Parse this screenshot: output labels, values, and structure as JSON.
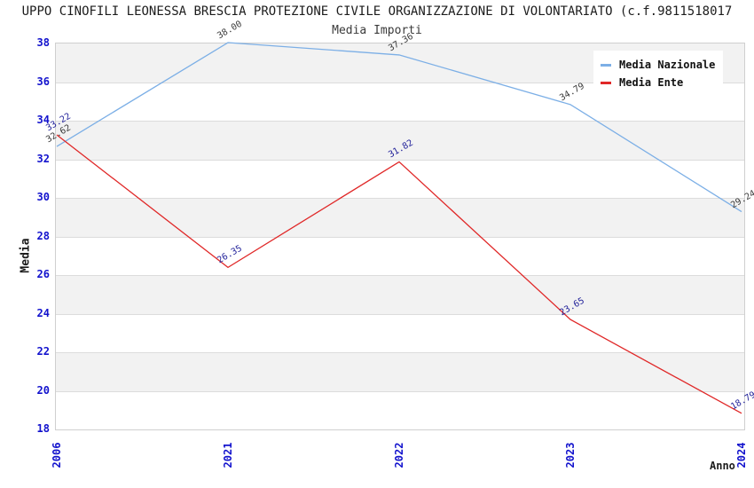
{
  "chart_data": {
    "type": "line",
    "title": "UPPO CINOFILI LEONESSA BRESCIA PROTEZIONE CIVILE ORGANIZZAZIONE DI VOLONTARIATO (c.f.9811518017",
    "subtitle": "Media Importi",
    "xlabel": "Anno",
    "ylabel": "Media",
    "categories": [
      "2006",
      "2021",
      "2022",
      "2023",
      "2024"
    ],
    "series": [
      {
        "name": "Media Nazionale",
        "color": "#7cafe6",
        "label_color": "#3a3a3a",
        "values": [
          32.62,
          38.0,
          37.36,
          34.79,
          29.24
        ]
      },
      {
        "name": "Media Ente",
        "color": "#e02828",
        "label_color": "#1f1f99",
        "values": [
          33.22,
          26.35,
          31.82,
          23.65,
          18.79
        ]
      }
    ],
    "ylim": [
      18,
      38
    ],
    "ytick_step": 2,
    "value_label_decimals": 2,
    "grid": "horizontal-alternating-bands",
    "band_color": "#f2f2f2",
    "tick_label_color": "#1212cd",
    "legend_position": "top-right"
  }
}
